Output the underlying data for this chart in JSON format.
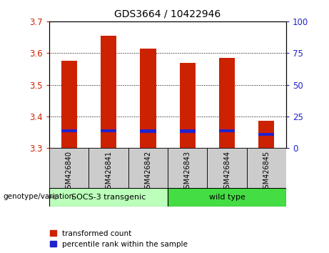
{
  "title": "GDS3664 / 10422946",
  "samples": [
    "GSM426840",
    "GSM426841",
    "GSM426842",
    "GSM426843",
    "GSM426844",
    "GSM426845"
  ],
  "transformed_counts": [
    3.575,
    3.655,
    3.615,
    3.57,
    3.585,
    3.385
  ],
  "percentile_values": [
    3.35,
    3.35,
    3.348,
    3.348,
    3.35,
    3.338
  ],
  "ylim_left": [
    3.3,
    3.7
  ],
  "yticks_left": [
    3.3,
    3.4,
    3.5,
    3.6,
    3.7
  ],
  "ylim_right": [
    0,
    100
  ],
  "yticks_right": [
    0,
    25,
    50,
    75,
    100
  ],
  "bar_color_red": "#cc2200",
  "bar_color_blue": "#2222cc",
  "group1_label": "SOCS-3 transgenic",
  "group2_label": "wild type",
  "group1_indices": [
    0,
    1,
    2
  ],
  "group2_indices": [
    3,
    4,
    5
  ],
  "group1_color": "#bbffbb",
  "group2_color": "#44dd44",
  "ylabel_left_color": "#cc2200",
  "ylabel_right_color": "#2222cc",
  "legend_red_label": "transformed count",
  "legend_blue_label": "percentile rank within the sample",
  "genotype_label": "genotype/variation",
  "bar_width": 0.4,
  "baseline": 3.3
}
